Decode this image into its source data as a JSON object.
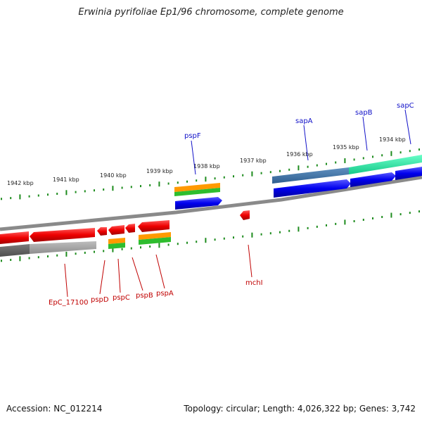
{
  "title": "Erwinia pyrifoliae Ep1/96 chromosome, complete genome",
  "accession": "Accession: NC_012214",
  "summary": "Topology: circular; Length: 4,026,322 bp; Genes: 3,742",
  "colors": {
    "backbone": "#8a8a8a",
    "tick": "#1e8c1e",
    "cds_forward": "#0000ee",
    "cds_reverse": "#ee0000",
    "gene_orange": "#ff9a00",
    "gene_green": "#2ebd2e",
    "teal": "#1fe8a0",
    "steel": "#3f76a8",
    "grey": "#a8a8a8",
    "label_forward": "#1010c8",
    "label_reverse": "#c00000"
  },
  "scale_labels": [
    "1942 kbp",
    "1941 kbp",
    "1940 kbp",
    "1939 kbp",
    "1938 kbp",
    "1937 kbp",
    "1936 kbp",
    "1935 kbp",
    "1934 kbp"
  ],
  "genes_forward": [
    {
      "name": "pspF"
    },
    {
      "name": "sapA"
    },
    {
      "name": "sapB"
    },
    {
      "name": "sapC"
    }
  ],
  "genes_reverse": [
    {
      "name": "EpC_17100"
    },
    {
      "name": "pspD"
    },
    {
      "name": "pspC"
    },
    {
      "name": "pspB"
    },
    {
      "name": "pspA"
    },
    {
      "name": "mchI"
    }
  ]
}
